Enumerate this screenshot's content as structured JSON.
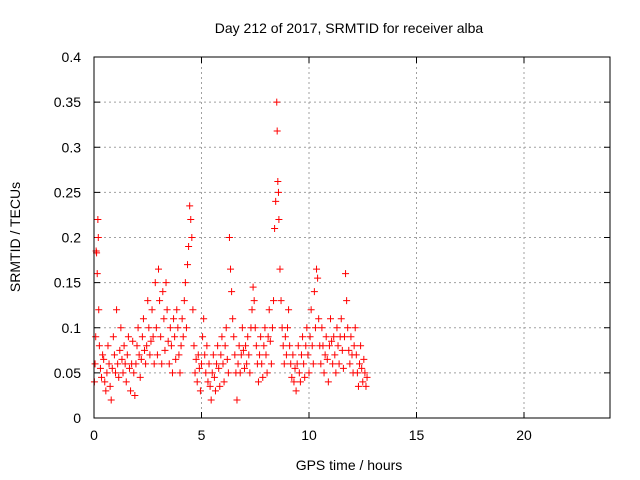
{
  "chart_data": {
    "type": "scatter",
    "title": "Day 212 of 2017, SRMTID for receiver alba",
    "xlabel": "GPS time / hours",
    "ylabel": "SRMTID / TECUs",
    "xlim": [
      0,
      24
    ],
    "ylim": [
      0,
      0.4
    ],
    "xticks": [
      0,
      5,
      10,
      15,
      20
    ],
    "yticks": [
      0,
      0.05,
      0.1,
      0.15,
      0.2,
      0.25,
      0.3,
      0.35,
      0.4
    ],
    "ytick_labels": [
      "0",
      "0.05",
      "0.1",
      "0.15",
      "0.2",
      "0.25",
      "0.3",
      "0.35",
      "0.4"
    ],
    "grid": true,
    "marker": "+",
    "series": [
      {
        "name": "SRMTID",
        "color": "#ff0000",
        "points": [
          [
            0.02,
            0.04
          ],
          [
            0.05,
            0.06
          ],
          [
            0.08,
            0.09
          ],
          [
            0.1,
            0.185
          ],
          [
            0.12,
            0.183
          ],
          [
            0.15,
            0.16
          ],
          [
            0.18,
            0.22
          ],
          [
            0.2,
            0.2
          ],
          [
            0.22,
            0.12
          ],
          [
            0.25,
            0.08
          ],
          [
            0.3,
            0.055
          ],
          [
            0.35,
            0.045
          ],
          [
            0.4,
            0.07
          ],
          [
            0.45,
            0.065
          ],
          [
            0.5,
            0.04
          ],
          [
            0.55,
            0.03
          ],
          [
            0.6,
            0.05
          ],
          [
            0.65,
            0.08
          ],
          [
            0.7,
            0.06
          ],
          [
            0.75,
            0.035
          ],
          [
            0.8,
            0.02
          ],
          [
            0.85,
            0.055
          ],
          [
            0.9,
            0.09
          ],
          [
            0.95,
            0.07
          ],
          [
            1.0,
            0.05
          ],
          [
            1.05,
            0.12
          ],
          [
            1.1,
            0.06
          ],
          [
            1.15,
            0.045
          ],
          [
            1.2,
            0.075
          ],
          [
            1.25,
            0.1
          ],
          [
            1.3,
            0.065
          ],
          [
            1.35,
            0.05
          ],
          [
            1.4,
            0.08
          ],
          [
            1.45,
            0.06
          ],
          [
            1.5,
            0.04
          ],
          [
            1.55,
            0.07
          ],
          [
            1.6,
            0.09
          ],
          [
            1.65,
            0.055
          ],
          [
            1.7,
            0.03
          ],
          [
            1.75,
            0.06
          ],
          [
            1.8,
            0.085
          ],
          [
            1.85,
            0.05
          ],
          [
            1.9,
            0.025
          ],
          [
            1.95,
            0.06
          ],
          [
            2.0,
            0.08
          ],
          [
            2.05,
            0.1
          ],
          [
            2.1,
            0.07
          ],
          [
            2.15,
            0.045
          ],
          [
            2.2,
            0.065
          ],
          [
            2.25,
            0.09
          ],
          [
            2.3,
            0.11
          ],
          [
            2.35,
            0.075
          ],
          [
            2.4,
            0.06
          ],
          [
            2.45,
            0.08
          ],
          [
            2.5,
            0.13
          ],
          [
            2.55,
            0.1
          ],
          [
            2.6,
            0.07
          ],
          [
            2.65,
            0.085
          ],
          [
            2.7,
            0.12
          ],
          [
            2.75,
            0.09
          ],
          [
            2.8,
            0.06
          ],
          [
            2.85,
            0.15
          ],
          [
            2.9,
            0.1
          ],
          [
            2.95,
            0.07
          ],
          [
            3.0,
            0.165
          ],
          [
            3.05,
            0.13
          ],
          [
            3.1,
            0.09
          ],
          [
            3.15,
            0.06
          ],
          [
            3.2,
            0.14
          ],
          [
            3.25,
            0.11
          ],
          [
            3.3,
            0.075
          ],
          [
            3.35,
            0.15
          ],
          [
            3.4,
            0.12
          ],
          [
            3.45,
            0.085
          ],
          [
            3.5,
            0.06
          ],
          [
            3.55,
            0.1
          ],
          [
            3.6,
            0.08
          ],
          [
            3.65,
            0.05
          ],
          [
            3.7,
            0.11
          ],
          [
            3.75,
            0.09
          ],
          [
            3.8,
            0.065
          ],
          [
            3.85,
            0.12
          ],
          [
            3.9,
            0.1
          ],
          [
            3.95,
            0.07
          ],
          [
            4.0,
            0.05
          ],
          [
            4.05,
            0.08
          ],
          [
            4.1,
            0.11
          ],
          [
            4.15,
            0.09
          ],
          [
            4.2,
            0.13
          ],
          [
            4.25,
            0.15
          ],
          [
            4.3,
            0.1
          ],
          [
            4.35,
            0.17
          ],
          [
            4.4,
            0.19
          ],
          [
            4.45,
            0.235
          ],
          [
            4.5,
            0.22
          ],
          [
            4.55,
            0.2
          ],
          [
            4.6,
            0.12
          ],
          [
            4.65,
            0.08
          ],
          [
            4.7,
            0.05
          ],
          [
            4.75,
            0.065
          ],
          [
            4.8,
            0.04
          ],
          [
            4.85,
            0.07
          ],
          [
            4.9,
            0.055
          ],
          [
            4.95,
            0.03
          ],
          [
            5.0,
            0.06
          ],
          [
            5.05,
            0.09
          ],
          [
            5.1,
            0.11
          ],
          [
            5.15,
            0.07
          ],
          [
            5.2,
            0.05
          ],
          [
            5.25,
            0.08
          ],
          [
            5.3,
            0.04
          ],
          [
            5.35,
            0.06
          ],
          [
            5.4,
            0.035
          ],
          [
            5.45,
            0.02
          ],
          [
            5.5,
            0.05
          ],
          [
            5.55,
            0.07
          ],
          [
            5.6,
            0.045
          ],
          [
            5.65,
            0.03
          ],
          [
            5.7,
            0.06
          ],
          [
            5.75,
            0.08
          ],
          [
            5.8,
            0.055
          ],
          [
            5.85,
            0.035
          ],
          [
            5.9,
            0.07
          ],
          [
            5.95,
            0.09
          ],
          [
            6.0,
            0.06
          ],
          [
            6.05,
            0.04
          ],
          [
            6.1,
            0.08
          ],
          [
            6.15,
            0.1
          ],
          [
            6.2,
            0.065
          ],
          [
            6.25,
            0.05
          ],
          [
            6.3,
            0.2
          ],
          [
            6.35,
            0.165
          ],
          [
            6.4,
            0.14
          ],
          [
            6.45,
            0.11
          ],
          [
            6.5,
            0.09
          ],
          [
            6.55,
            0.07
          ],
          [
            6.6,
            0.05
          ],
          [
            6.65,
            0.02
          ],
          [
            6.7,
            0.06
          ],
          [
            6.75,
            0.08
          ],
          [
            6.8,
            0.05
          ],
          [
            6.85,
            0.07
          ],
          [
            6.9,
            0.1
          ],
          [
            6.95,
            0.075
          ],
          [
            7.0,
            0.055
          ],
          [
            7.05,
            0.08
          ],
          [
            7.1,
            0.06
          ],
          [
            7.15,
            0.09
          ],
          [
            7.2,
            0.07
          ],
          [
            7.25,
            0.05
          ],
          [
            7.3,
            0.1
          ],
          [
            7.35,
            0.12
          ],
          [
            7.4,
            0.145
          ],
          [
            7.45,
            0.13
          ],
          [
            7.5,
            0.1
          ],
          [
            7.55,
            0.08
          ],
          [
            7.6,
            0.06
          ],
          [
            7.65,
            0.04
          ],
          [
            7.7,
            0.07
          ],
          [
            7.75,
            0.09
          ],
          [
            7.8,
            0.06
          ],
          [
            7.85,
            0.045
          ],
          [
            7.9,
            0.08
          ],
          [
            7.95,
            0.1
          ],
          [
            8.0,
            0.07
          ],
          [
            8.05,
            0.05
          ],
          [
            8.1,
            0.09
          ],
          [
            8.15,
            0.12
          ],
          [
            8.2,
            0.085
          ],
          [
            8.25,
            0.06
          ],
          [
            8.3,
            0.1
          ],
          [
            8.35,
            0.13
          ],
          [
            8.4,
            0.21
          ],
          [
            8.45,
            0.24
          ],
          [
            8.5,
            0.35
          ],
          [
            8.52,
            0.318
          ],
          [
            8.55,
            0.262
          ],
          [
            8.58,
            0.25
          ],
          [
            8.6,
            0.22
          ],
          [
            8.65,
            0.165
          ],
          [
            8.7,
            0.13
          ],
          [
            8.75,
            0.1
          ],
          [
            8.8,
            0.08
          ],
          [
            8.85,
            0.06
          ],
          [
            8.9,
            0.09
          ],
          [
            8.95,
            0.07
          ],
          [
            9.0,
            0.1
          ],
          [
            9.05,
            0.12
          ],
          [
            9.1,
            0.08
          ],
          [
            9.15,
            0.06
          ],
          [
            9.2,
            0.045
          ],
          [
            9.25,
            0.07
          ],
          [
            9.3,
            0.04
          ],
          [
            9.35,
            0.055
          ],
          [
            9.4,
            0.03
          ],
          [
            9.45,
            0.06
          ],
          [
            9.5,
            0.08
          ],
          [
            9.55,
            0.05
          ],
          [
            9.6,
            0.04
          ],
          [
            9.65,
            0.07
          ],
          [
            9.7,
            0.09
          ],
          [
            9.75,
            0.06
          ],
          [
            9.8,
            0.045
          ],
          [
            9.85,
            0.08
          ],
          [
            9.9,
            0.1
          ],
          [
            9.95,
            0.07
          ],
          [
            10.0,
            0.05
          ],
          [
            10.05,
            0.09
          ],
          [
            10.1,
            0.12
          ],
          [
            10.15,
            0.08
          ],
          [
            10.2,
            0.06
          ],
          [
            10.25,
            0.14
          ],
          [
            10.3,
            0.1
          ],
          [
            10.35,
            0.165
          ],
          [
            10.4,
            0.155
          ],
          [
            10.45,
            0.11
          ],
          [
            10.5,
            0.08
          ],
          [
            10.55,
            0.06
          ],
          [
            10.6,
            0.1
          ],
          [
            10.65,
            0.08
          ],
          [
            10.7,
            0.05
          ],
          [
            10.75,
            0.07
          ],
          [
            10.8,
            0.09
          ],
          [
            10.85,
            0.065
          ],
          [
            10.9,
            0.04
          ],
          [
            10.95,
            0.08
          ],
          [
            11.0,
            0.11
          ],
          [
            11.05,
            0.085
          ],
          [
            11.1,
            0.06
          ],
          [
            11.15,
            0.09
          ],
          [
            11.2,
            0.07
          ],
          [
            11.25,
            0.05
          ],
          [
            11.3,
            0.1
          ],
          [
            11.35,
            0.08
          ],
          [
            11.4,
            0.06
          ],
          [
            11.45,
            0.09
          ],
          [
            11.5,
            0.11
          ],
          [
            11.55,
            0.075
          ],
          [
            11.6,
            0.055
          ],
          [
            11.65,
            0.09
          ],
          [
            11.7,
            0.16
          ],
          [
            11.75,
            0.13
          ],
          [
            11.8,
            0.1
          ],
          [
            11.85,
            0.075
          ],
          [
            11.9,
            0.06
          ],
          [
            11.95,
            0.09
          ],
          [
            12.0,
            0.07
          ],
          [
            12.05,
            0.05
          ],
          [
            12.1,
            0.08
          ],
          [
            12.15,
            0.1
          ],
          [
            12.2,
            0.07
          ],
          [
            12.25,
            0.05
          ],
          [
            12.3,
            0.035
          ],
          [
            12.35,
            0.06
          ],
          [
            12.4,
            0.08
          ],
          [
            12.45,
            0.055
          ],
          [
            12.5,
            0.04
          ],
          [
            12.55,
            0.065
          ],
          [
            12.6,
            0.05
          ],
          [
            12.65,
            0.035
          ],
          [
            12.7,
            0.045
          ]
        ]
      }
    ]
  }
}
